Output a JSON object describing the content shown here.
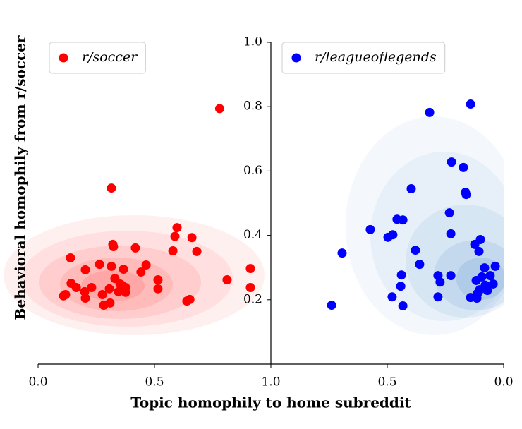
{
  "chart_data": [
    {
      "type": "scatter",
      "xlabel": "Topic homophily to home subreddit",
      "ylabel": "Behavioral homophily from r/soccer",
      "xlim": [
        0,
        1
      ],
      "ylim": [
        0,
        1
      ],
      "xticks": [
        {
          "value": 0,
          "label": "0.0"
        },
        {
          "value": 0.5,
          "label": "0.5"
        },
        {
          "value": 1,
          "label": "1.0"
        }
      ],
      "legend": "upper left",
      "series": [
        {
          "name": "r/soccer",
          "color": "#ff0000",
          "x": [
            0.78,
            0.315,
            0.597,
            0.588,
            0.661,
            0.579,
            0.682,
            0.321,
            0.324,
            0.418,
            0.139,
            0.264,
            0.315,
            0.464,
            0.367,
            0.203,
            0.442,
            0.912,
            0.812,
            0.515,
            0.912,
            0.515,
            0.142,
            0.164,
            0.23,
            0.33,
            0.352,
            0.376,
            0.118,
            0.2,
            0.276,
            0.306,
            0.345,
            0.376,
            0.203,
            0.309,
            0.282,
            0.652,
            0.639,
            0.109,
            0.36
          ],
          "values": [
            0.794,
            0.547,
            0.424,
            0.397,
            0.393,
            0.352,
            0.35,
            0.372,
            0.365,
            0.361,
            0.33,
            0.31,
            0.304,
            0.308,
            0.295,
            0.293,
            0.286,
            0.297,
            0.262,
            0.262,
            0.238,
            0.234,
            0.251,
            0.238,
            0.238,
            0.266,
            0.249,
            0.238,
            0.216,
            0.225,
            0.216,
            0.234,
            0.225,
            0.223,
            0.205,
            0.19,
            0.183,
            0.201,
            0.196,
            0.212,
            0.245
          ]
        }
      ]
    },
    {
      "type": "scatter",
      "xlim": [
        1,
        0
      ],
      "ylim": [
        0,
        1
      ],
      "xticks": [
        {
          "value": 0.5,
          "label": "0.5"
        },
        {
          "value": 0,
          "label": "0.0"
        }
      ],
      "yticks": [
        0.2,
        0.4,
        0.6,
        0.8,
        {
          "value": 1,
          "label": "1.0"
        }
      ],
      "legend": "upper left",
      "series": [
        {
          "name": "r/leagueoflegends",
          "color": "#0000ff",
          "x": [
            0.142,
            0.318,
            0.224,
            0.173,
            0.397,
            0.164,
            0.161,
            0.233,
            0.458,
            0.433,
            0.573,
            0.476,
            0.497,
            0.227,
            0.1,
            0.124,
            0.694,
            0.379,
            0.106,
            0.361,
            0.082,
            0.036,
            0.439,
            0.282,
            0.227,
            0.058,
            0.094,
            0.118,
            0.273,
            0.045,
            0.079,
            0.442,
            0.103,
            0.07,
            0.112,
            0.479,
            0.282,
            0.142,
            0.115,
            0.433,
            0.739
          ],
          "values": [
            0.808,
            0.782,
            0.628,
            0.611,
            0.545,
            0.534,
            0.527,
            0.47,
            0.45,
            0.448,
            0.418,
            0.402,
            0.394,
            0.405,
            0.387,
            0.372,
            0.345,
            0.354,
            0.35,
            0.31,
            0.299,
            0.304,
            0.277,
            0.275,
            0.275,
            0.275,
            0.271,
            0.26,
            0.255,
            0.249,
            0.245,
            0.242,
            0.231,
            0.229,
            0.22,
            0.209,
            0.209,
            0.207,
            0.205,
            0.181,
            0.183
          ]
        }
      ]
    }
  ]
}
